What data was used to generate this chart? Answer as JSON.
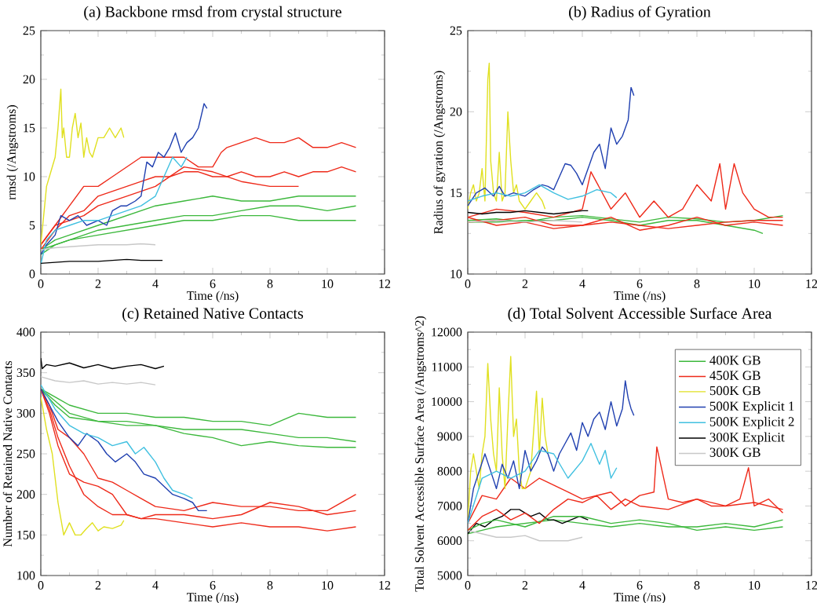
{
  "chart_data": [
    {
      "type": "line",
      "title": "(a) Backbone rmsd from crystal structure",
      "xlabel": "Time (/ns)",
      "ylabel": "rmsd (/Angstroms)",
      "xlim": [
        0,
        12
      ],
      "ylim": [
        0,
        25
      ],
      "xticks": [
        0,
        2,
        4,
        6,
        8,
        10,
        12
      ],
      "yticks": [
        0,
        5,
        10,
        15,
        20,
        25
      ],
      "series": [
        {
          "color": "#3cb83c",
          "x": [
            0,
            0.5,
            1,
            2,
            3,
            4,
            5,
            6,
            7,
            8,
            9,
            10,
            11
          ],
          "values": [
            2.5,
            3.5,
            4,
            5,
            6,
            7,
            7.5,
            8,
            7.5,
            7.5,
            8,
            8,
            8
          ]
        },
        {
          "color": "#3cb83c",
          "x": [
            0,
            0.5,
            1,
            2,
            3,
            4,
            5,
            6,
            7,
            8,
            9,
            10,
            11
          ],
          "values": [
            2.5,
            3,
            3.5,
            4.5,
            5,
            5.5,
            6,
            6,
            6.5,
            7,
            7,
            6.5,
            7
          ]
        },
        {
          "color": "#3cb83c",
          "x": [
            0,
            0.5,
            1,
            2,
            3,
            4,
            5,
            6,
            7,
            8,
            9,
            10,
            11
          ],
          "values": [
            2,
            3,
            3.5,
            4,
            4.5,
            5,
            5.5,
            5.5,
            6,
            6,
            5.5,
            5.5,
            5.5
          ]
        },
        {
          "color": "#ee2a1a",
          "x": [
            0,
            0.5,
            1,
            1.5,
            2,
            2.5,
            3,
            3.5,
            4,
            4.5,
            5,
            5.5,
            6,
            6.3,
            6.5,
            7,
            7.5,
            8,
            8.5,
            9,
            9.5,
            10,
            10.5,
            11
          ],
          "values": [
            3,
            5,
            7,
            9,
            9,
            10,
            11,
            12,
            12,
            12,
            12,
            11,
            11,
            12.5,
            13,
            13.5,
            14,
            13.5,
            13.5,
            14,
            13,
            13,
            13.5,
            13
          ]
        },
        {
          "color": "#ee2a1a",
          "x": [
            0,
            0.5,
            1,
            1.5,
            2,
            2.5,
            3,
            3.5,
            4,
            4.5,
            5,
            5.5,
            6,
            6.5,
            7,
            7.5,
            8,
            8.5,
            9,
            9.5,
            10,
            10.5,
            11
          ],
          "values": [
            2.5,
            4.5,
            6,
            6.5,
            8,
            8.5,
            9,
            9.5,
            10,
            10,
            10.5,
            10.5,
            10,
            10,
            10.5,
            10,
            10,
            10.5,
            10,
            10.5,
            10.5,
            11,
            10.5
          ]
        },
        {
          "color": "#ee2a1a",
          "x": [
            0,
            0.5,
            1,
            1.5,
            2,
            3,
            4,
            5,
            6,
            7,
            8,
            9
          ],
          "values": [
            3,
            5,
            5.5,
            6,
            7,
            8,
            9,
            11,
            10.5,
            9.5,
            9,
            9
          ]
        },
        {
          "color": "#e0e020",
          "x": [
            0,
            0.1,
            0.2,
            0.3,
            0.4,
            0.5,
            0.6,
            0.7,
            0.75,
            0.8,
            0.9,
            1.0,
            1.1,
            1.2,
            1.3,
            1.4,
            1.5,
            1.6,
            1.7,
            1.8,
            1.9,
            2.0,
            2.2,
            2.4,
            2.6,
            2.8,
            2.9
          ],
          "values": [
            3,
            6,
            9,
            10,
            11,
            12,
            15,
            19,
            14,
            15,
            12,
            12,
            15,
            16.5,
            14,
            15.5,
            12,
            14,
            12.5,
            12,
            13,
            14,
            14,
            15,
            14,
            15,
            14
          ]
        },
        {
          "color": "#2040b0",
          "x": [
            0,
            0.2,
            0.5,
            0.7,
            1,
            1.3,
            1.6,
            2,
            2.3,
            2.5,
            2.8,
            3,
            3.3,
            3.5,
            3.7,
            3.9,
            4.1,
            4.3,
            4.5,
            4.7,
            4.9,
            5.1,
            5.3,
            5.5,
            5.7,
            5.8
          ],
          "values": [
            2,
            3,
            4,
            6,
            5.5,
            6,
            5,
            5.5,
            5,
            6.5,
            7,
            7,
            7.5,
            8,
            11.5,
            11,
            12.5,
            12,
            13,
            14.5,
            12.5,
            13.5,
            14,
            15,
            17.5,
            17
          ]
        },
        {
          "color": "#40c0e0",
          "x": [
            0,
            0.2,
            0.5,
            1,
            1.5,
            2,
            2.5,
            3,
            3.5,
            4,
            4.3,
            4.6,
            4.9,
            5.1
          ],
          "values": [
            1,
            3.5,
            4.5,
            5,
            5.5,
            5.5,
            6,
            6.5,
            7,
            8,
            10,
            12,
            11,
            12
          ]
        },
        {
          "color": "#000000",
          "x": [
            0,
            0.5,
            1,
            1.5,
            2,
            2.5,
            3,
            3.5,
            4,
            4.25
          ],
          "values": [
            1.1,
            1.2,
            1.3,
            1.3,
            1.3,
            1.4,
            1.5,
            1.4,
            1.4,
            1.4
          ]
        },
        {
          "color": "#c8c8c8",
          "x": [
            0,
            0.5,
            1,
            1.5,
            2,
            2.5,
            3,
            3.5,
            4
          ],
          "values": [
            2.5,
            2.7,
            2.8,
            2.9,
            3.0,
            3.0,
            3.0,
            3.1,
            3.0
          ]
        }
      ]
    },
    {
      "type": "line",
      "title": "(b) Radius of Gyration",
      "xlabel": "Time (/ns)",
      "ylabel": "Radius of gyration (/Angstroms)",
      "xlim": [
        0,
        12
      ],
      "ylim": [
        10,
        25
      ],
      "xticks": [
        0,
        2,
        4,
        6,
        8,
        10,
        12
      ],
      "yticks": [
        10,
        15,
        20,
        25
      ],
      "series": [
        {
          "color": "#3cb83c",
          "x": [
            0,
            1,
            2,
            3,
            4,
            5,
            6,
            7,
            8,
            9,
            10,
            10.3
          ],
          "values": [
            13.2,
            13.2,
            13.3,
            13.3,
            13.5,
            13.3,
            13,
            13.3,
            13.3,
            13,
            12.7,
            12.5
          ]
        },
        {
          "color": "#3cb83c",
          "x": [
            0,
            1,
            2,
            3,
            4,
            5,
            6,
            7,
            8,
            9,
            10,
            11
          ],
          "values": [
            13.3,
            13.4,
            13.2,
            13.5,
            13.6,
            13.4,
            13.2,
            13.5,
            13.4,
            13.2,
            13.3,
            13.6
          ]
        },
        {
          "color": "#ee2a1a",
          "x": [
            0,
            1,
            2,
            3,
            4,
            4.3,
            5,
            5.5,
            6,
            6.5,
            7,
            7.5,
            8,
            8.5,
            8.8,
            9,
            9.3,
            9.6,
            10,
            10.5,
            11
          ],
          "values": [
            13.5,
            14,
            13.8,
            13.5,
            14,
            16.3,
            14,
            15,
            13.5,
            14.5,
            13.5,
            14,
            15.5,
            14.5,
            16.8,
            14,
            16.8,
            15,
            14,
            13.5,
            13.5
          ]
        },
        {
          "color": "#ee2a1a",
          "x": [
            0,
            1,
            2,
            3,
            4,
            5,
            6,
            7,
            8,
            9,
            10,
            11
          ],
          "values": [
            13.2,
            13.3,
            13.5,
            13,
            13,
            13.2,
            13,
            12.8,
            13,
            13.2,
            13.3,
            13.3
          ]
        },
        {
          "color": "#ee2a1a",
          "x": [
            0,
            1,
            2,
            3,
            4,
            5,
            6,
            7,
            8,
            9,
            10,
            11
          ],
          "values": [
            13.5,
            13,
            13.2,
            12.8,
            13,
            13.5,
            12.7,
            13,
            13.5,
            13,
            13.2,
            13
          ]
        },
        {
          "color": "#e0e020",
          "x": [
            0,
            0.1,
            0.2,
            0.3,
            0.4,
            0.5,
            0.6,
            0.7,
            0.75,
            0.8,
            0.9,
            1,
            1.1,
            1.2,
            1.3,
            1.4,
            1.5,
            1.6,
            1.7,
            1.8,
            2,
            2.2,
            2.4,
            2.6,
            2.7
          ],
          "values": [
            14,
            15,
            15.5,
            14.5,
            15,
            16.5,
            14.5,
            22,
            23,
            17,
            15,
            14.5,
            17.5,
            14.5,
            15,
            20,
            17,
            15,
            15.5,
            14.5,
            14,
            14.5,
            15,
            14.5,
            14
          ]
        },
        {
          "color": "#2040b0",
          "x": [
            0,
            0.3,
            0.6,
            0.9,
            1.1,
            1.3,
            1.6,
            2,
            2.3,
            2.6,
            2.8,
            3,
            3.2,
            3.4,
            3.6,
            3.8,
            4,
            4.2,
            4.4,
            4.6,
            4.8,
            5,
            5.2,
            5.4,
            5.6,
            5.7,
            5.8
          ],
          "values": [
            14.2,
            15,
            15.3,
            14.8,
            15.4,
            14.8,
            15,
            14.8,
            15.2,
            15.5,
            15.4,
            15.2,
            16,
            16.8,
            16.7,
            16.2,
            15.5,
            16.5,
            17.5,
            18,
            16.5,
            19,
            18,
            18.5,
            19.5,
            21.5,
            21
          ]
        },
        {
          "color": "#40c0e0",
          "x": [
            0,
            0.5,
            1,
            1.5,
            2,
            2.5,
            3,
            3.5,
            4,
            4.5,
            5,
            5.2
          ],
          "values": [
            14.5,
            14.8,
            15,
            14.8,
            15,
            15.5,
            15,
            14.6,
            14.8,
            15.2,
            15,
            14.7
          ]
        },
        {
          "color": "#000000",
          "x": [
            0,
            0.5,
            1,
            1.5,
            2,
            2.5,
            3,
            3.5,
            4,
            4.2
          ],
          "values": [
            13.8,
            13.7,
            13.8,
            13.8,
            13.9,
            13.8,
            13.7,
            13.8,
            13.9,
            13.9
          ]
        },
        {
          "color": "#c8c8c8",
          "x": [
            0,
            1,
            2,
            3,
            4
          ],
          "values": [
            13.2,
            13.3,
            13.2,
            13.3,
            13.2
          ]
        }
      ]
    },
    {
      "type": "line",
      "title": "(c) Retained Native Contacts",
      "xlabel": "Time (/ns)",
      "ylabel": "Number of Retained Native Contacts",
      "xlim": [
        0,
        12
      ],
      "ylim": [
        100,
        400
      ],
      "xticks": [
        0,
        2,
        4,
        6,
        8,
        10,
        12
      ],
      "yticks": [
        100,
        150,
        200,
        250,
        300,
        350,
        400
      ],
      "series": [
        {
          "color": "#3cb83c",
          "x": [
            0,
            0.5,
            1,
            2,
            3,
            4,
            5,
            6,
            7,
            8,
            9,
            10,
            11
          ],
          "values": [
            330,
            320,
            310,
            300,
            300,
            295,
            295,
            290,
            290,
            285,
            300,
            295,
            295
          ]
        },
        {
          "color": "#3cb83c",
          "x": [
            0,
            0.5,
            1,
            2,
            3,
            4,
            5,
            6,
            7,
            8,
            9,
            10,
            11
          ],
          "values": [
            330,
            315,
            300,
            290,
            285,
            285,
            280,
            280,
            280,
            275,
            270,
            270,
            265
          ]
        },
        {
          "color": "#3cb83c",
          "x": [
            0,
            0.5,
            1,
            2,
            3,
            4,
            5,
            6,
            7,
            8,
            9,
            10,
            11
          ],
          "values": [
            330,
            310,
            295,
            290,
            290,
            285,
            275,
            270,
            260,
            265,
            260,
            258,
            258
          ]
        },
        {
          "color": "#ee2a1a",
          "x": [
            0,
            0.3,
            0.6,
            1,
            1.5,
            2,
            2.5,
            3,
            3.5,
            4,
            5,
            6,
            7,
            8,
            9,
            10,
            11
          ],
          "values": [
            330,
            300,
            260,
            225,
            215,
            210,
            200,
            175,
            170,
            170,
            165,
            160,
            165,
            160,
            160,
            155,
            160
          ]
        },
        {
          "color": "#ee2a1a",
          "x": [
            0,
            0.3,
            0.6,
            1,
            1.5,
            2,
            2.5,
            3,
            3.5,
            4,
            5,
            6,
            7,
            8,
            9,
            10,
            11
          ],
          "values": [
            330,
            310,
            280,
            270,
            250,
            220,
            215,
            205,
            195,
            185,
            180,
            190,
            185,
            185,
            180,
            180,
            200
          ]
        },
        {
          "color": "#ee2a1a",
          "x": [
            0,
            0.3,
            0.6,
            1,
            1.5,
            2,
            2.5,
            3,
            3.5,
            4,
            5,
            6,
            7,
            8,
            9,
            10,
            11
          ],
          "values": [
            330,
            305,
            270,
            235,
            200,
            185,
            175,
            175,
            170,
            175,
            175,
            170,
            175,
            190,
            185,
            175,
            180
          ]
        },
        {
          "color": "#e0e020",
          "x": [
            0,
            0.2,
            0.4,
            0.6,
            0.8,
            1,
            1.2,
            1.4,
            1.6,
            1.8,
            2,
            2.2,
            2.5,
            2.8,
            2.9
          ],
          "values": [
            320,
            280,
            250,
            190,
            150,
            165,
            150,
            150,
            158,
            165,
            155,
            160,
            158,
            162,
            168
          ]
        },
        {
          "color": "#2040b0",
          "x": [
            0,
            0.3,
            0.6,
            1,
            1.3,
            1.6,
            2,
            2.3,
            2.6,
            3,
            3.3,
            3.6,
            4,
            4.3,
            4.6,
            5,
            5.3,
            5.5,
            5.8
          ],
          "values": [
            330,
            310,
            290,
            270,
            260,
            275,
            265,
            250,
            240,
            250,
            240,
            225,
            220,
            210,
            200,
            195,
            190,
            180,
            180
          ]
        },
        {
          "color": "#40c0e0",
          "x": [
            0,
            0.5,
            1,
            1.5,
            2,
            2.5,
            3,
            3.3,
            3.6,
            4,
            4.3,
            4.6,
            5,
            5.3
          ],
          "values": [
            335,
            305,
            285,
            275,
            270,
            260,
            265,
            250,
            258,
            240,
            220,
            205,
            200,
            195
          ]
        },
        {
          "color": "#000000",
          "x": [
            0,
            0.05,
            0.2,
            0.5,
            1,
            1.5,
            2,
            2.5,
            3,
            3.5,
            4,
            4.3
          ],
          "values": [
            368,
            355,
            360,
            358,
            362,
            356,
            360,
            355,
            358,
            360,
            355,
            358
          ]
        },
        {
          "color": "#c8c8c8",
          "x": [
            0,
            0.5,
            1,
            1.5,
            2,
            2.5,
            3,
            3.5,
            4
          ],
          "values": [
            345,
            340,
            338,
            340,
            336,
            338,
            336,
            338,
            335
          ]
        }
      ]
    },
    {
      "type": "line",
      "title": "(d) Total Solvent Accessible Surface Area",
      "xlabel": "Time (/ns)",
      "ylabel": "Total Solvent Accessible Surface Area (/Angstroms^2)",
      "xlim": [
        0,
        12
      ],
      "ylim": [
        5000,
        12000
      ],
      "xticks": [
        0,
        2,
        4,
        6,
        8,
        10,
        12
      ],
      "yticks": [
        5000,
        6000,
        7000,
        8000,
        9000,
        10000,
        11000,
        12000
      ],
      "legend": "top right",
      "series": [
        {
          "name": "400K GB",
          "color": "#3cb83c",
          "x": [
            0,
            0.5,
            1,
            2,
            3,
            4,
            5,
            6,
            7,
            8,
            9,
            10,
            11
          ],
          "values": [
            6200,
            6300,
            6400,
            6500,
            6600,
            6500,
            6400,
            6500,
            6400,
            6400,
            6500,
            6400,
            6600
          ]
        },
        {
          "name": "450K GB",
          "color": "#ee2a1a",
          "x": [
            0,
            0.5,
            1,
            1.5,
            2,
            2.5,
            3,
            3.5,
            4,
            4.5,
            5,
            5.5,
            6,
            6.5,
            6.6,
            7,
            7.5,
            8,
            8.5,
            9,
            9.5,
            9.8,
            10,
            10.5,
            11
          ],
          "values": [
            6500,
            7300,
            7200,
            7800,
            7500,
            7800,
            7600,
            7400,
            7200,
            7300,
            7400,
            7000,
            7300,
            7400,
            8700,
            7200,
            7100,
            7200,
            7000,
            7000,
            7200,
            8100,
            7000,
            7200,
            6800
          ]
        },
        {
          "name": "500K GB",
          "color": "#e0e020",
          "x": [
            0,
            0.1,
            0.2,
            0.3,
            0.4,
            0.5,
            0.6,
            0.7,
            0.8,
            0.9,
            1,
            1.1,
            1.2,
            1.3,
            1.4,
            1.5,
            1.6,
            1.7,
            1.8,
            1.9,
            2,
            2.2,
            2.4,
            2.5,
            2.6,
            2.7,
            2.8
          ],
          "values": [
            6500,
            8000,
            8500,
            8000,
            7500,
            8500,
            9000,
            11100,
            9500,
            8500,
            8000,
            10400,
            8500,
            7500,
            9500,
            11300,
            9000,
            9500,
            8000,
            7500,
            7500,
            8000,
            10300,
            8500,
            10100,
            9000,
            8500
          ]
        },
        {
          "name": "500K Explicit 1",
          "color": "#2040b0",
          "x": [
            0,
            0.2,
            0.4,
            0.6,
            0.8,
            1,
            1.2,
            1.4,
            1.6,
            1.8,
            2,
            2.2,
            2.4,
            2.6,
            2.8,
            3,
            3.2,
            3.4,
            3.6,
            3.8,
            4,
            4.2,
            4.4,
            4.6,
            4.8,
            5,
            5.2,
            5.4,
            5.5,
            5.6,
            5.7,
            5.8
          ],
          "values": [
            6500,
            7500,
            8000,
            8500,
            8000,
            7500,
            8200,
            7800,
            8300,
            7500,
            8600,
            8000,
            8300,
            8700,
            8500,
            8000,
            8500,
            8800,
            9100,
            8600,
            9400,
            9000,
            9500,
            9700,
            9200,
            10000,
            9300,
            9800,
            10600,
            10100,
            9800,
            9600
          ]
        },
        {
          "name": "500K Explicit 2",
          "color": "#40c0e0",
          "x": [
            0,
            0.5,
            1,
            1.5,
            2,
            2.5,
            3,
            3.5,
            4,
            4.3,
            4.6,
            4.8,
            5,
            5.2
          ],
          "values": [
            6500,
            7800,
            8000,
            7800,
            8000,
            8600,
            8500,
            7800,
            8300,
            8800,
            8200,
            8600,
            7800,
            8100
          ]
        },
        {
          "name": "300K Explicit",
          "color": "#000000",
          "x": [
            0,
            0.3,
            0.6,
            0.9,
            1.2,
            1.5,
            1.8,
            2,
            2.2,
            2.5,
            2.8,
            3,
            3.3,
            3.6,
            3.9,
            4.2
          ],
          "values": [
            6200,
            6500,
            6400,
            6600,
            6700,
            6900,
            6900,
            6800,
            6700,
            6800,
            6600,
            6600,
            6500,
            6600,
            6700,
            6600
          ]
        },
        {
          "name": "300K GB",
          "color": "#c8c8c8",
          "x": [
            0,
            0.5,
            1,
            1.5,
            2,
            2.5,
            3,
            3.5,
            4
          ],
          "values": [
            6300,
            6200,
            6100,
            6100,
            6150,
            6000,
            6000,
            6000,
            6100
          ]
        },
        {
          "color": "#3cb83c",
          "x": [
            0,
            0.5,
            1,
            2,
            3,
            4,
            5,
            6,
            7,
            8,
            9,
            10,
            11
          ],
          "values": [
            6300,
            6500,
            6600,
            6400,
            6700,
            6700,
            6500,
            6600,
            6500,
            6300,
            6400,
            6300,
            6400
          ]
        },
        {
          "color": "#ee2a1a",
          "x": [
            0,
            0.5,
            1,
            1.5,
            2,
            2.5,
            3,
            3.5,
            4,
            4.5,
            5,
            5.5,
            6,
            7,
            8,
            9,
            10,
            11
          ],
          "values": [
            6300,
            6700,
            6900,
            6600,
            6800,
            6500,
            6900,
            7200,
            7100,
            7300,
            6900,
            7200,
            7000,
            6900,
            7200,
            7000,
            7100,
            6900
          ]
        }
      ]
    }
  ]
}
